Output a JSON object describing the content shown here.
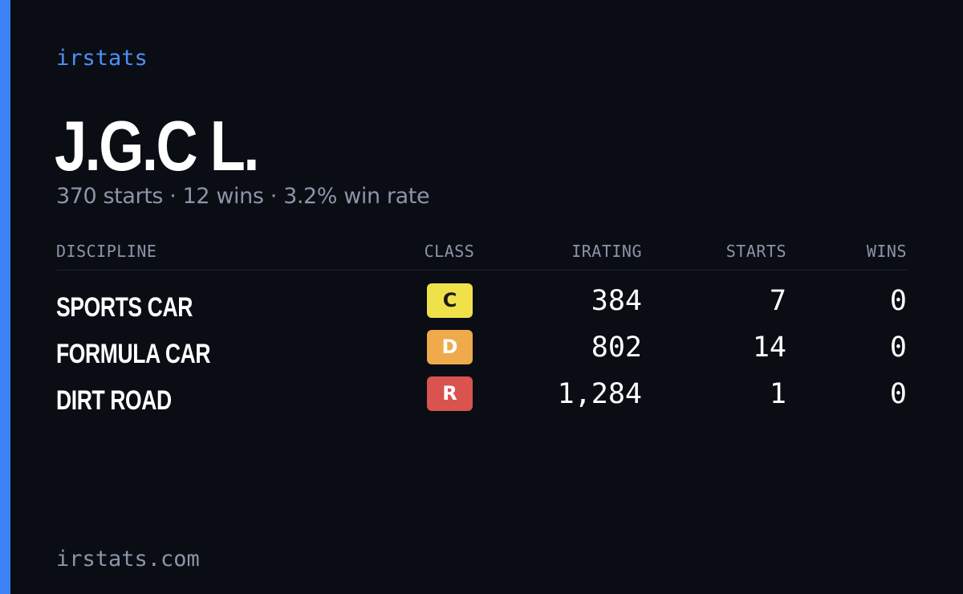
{
  "brand": "irstats",
  "driver": {
    "name": "J.G.C L.",
    "summary": "370 starts · 12 wins · 3.2% win rate"
  },
  "table": {
    "headers": {
      "discipline": "DISCIPLINE",
      "class": "CLASS",
      "irating": "IRATING",
      "starts": "STARTS",
      "wins": "WINS"
    },
    "rows": [
      {
        "discipline": "SPORTS CAR",
        "class": "C",
        "class_color": "#f0e04a",
        "class_text_color": "#1a1a1a",
        "irating": "384",
        "starts": "7",
        "wins": "0"
      },
      {
        "discipline": "FORMULA CAR",
        "class": "D",
        "class_color": "#eeaa4b",
        "class_text_color": "#ffffff",
        "irating": "802",
        "starts": "14",
        "wins": "0"
      },
      {
        "discipline": "DIRT ROAD",
        "class": "R",
        "class_color": "#d9534f",
        "class_text_color": "#ffffff",
        "irating": "1,284",
        "starts": "1",
        "wins": "0"
      }
    ]
  },
  "footer": {
    "url": "irstats.com"
  },
  "colors": {
    "accent": "#3b82f6",
    "background": "#0a0d14",
    "muted_text": "#8b95a7"
  }
}
